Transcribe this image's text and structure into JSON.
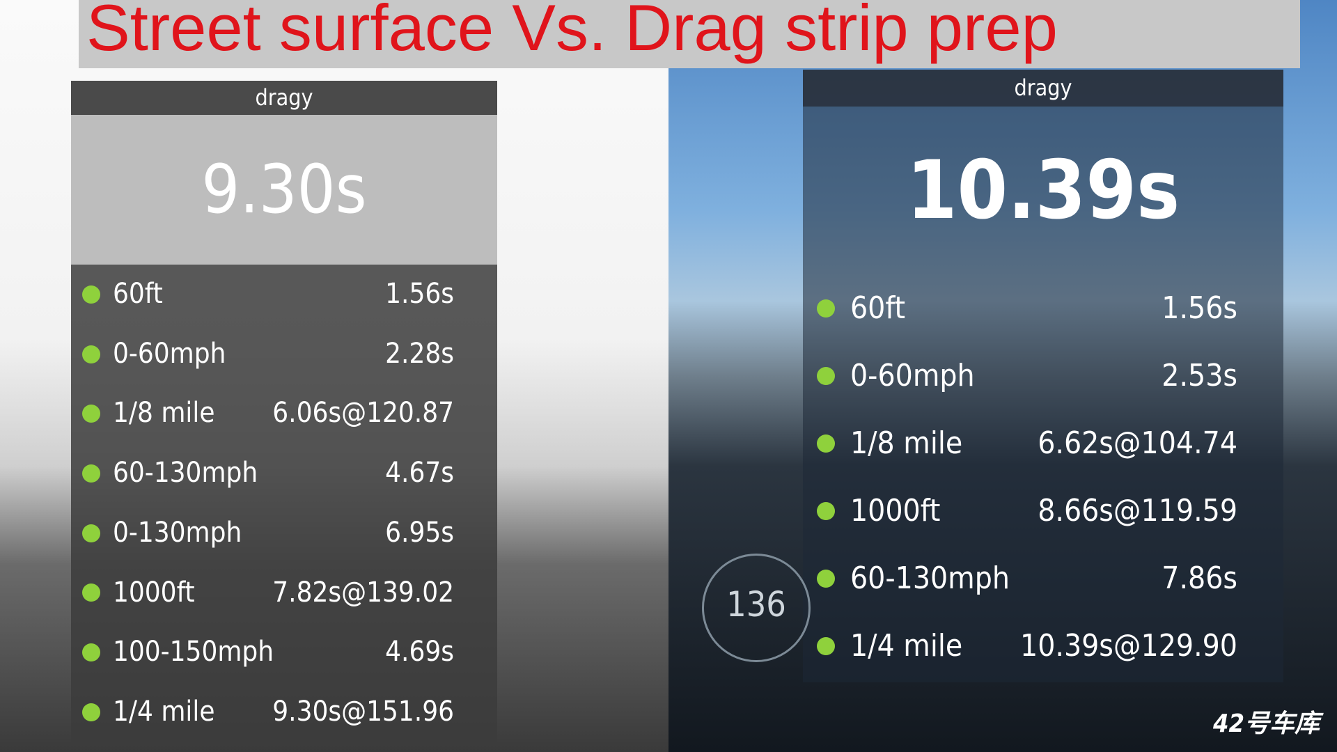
{
  "title": "Street surface  Vs. Drag strip prep",
  "left_panel": {
    "brand": "dragy",
    "time": "9.30s",
    "rows": [
      {
        "label": "60ft",
        "value": "1.56s"
      },
      {
        "label": "0-60mph",
        "value": "2.28s"
      },
      {
        "label": "1/8 mile",
        "value": "6.06s@120.87"
      },
      {
        "label": "60-130mph",
        "value": "4.67s"
      },
      {
        "label": "0-130mph",
        "value": "6.95s"
      },
      {
        "label": "1000ft",
        "value": "7.82s@139.02"
      },
      {
        "label": "100-150mph",
        "value": "4.69s"
      },
      {
        "label": "1/4 mile",
        "value": "9.30s@151.96"
      }
    ]
  },
  "right_panel": {
    "brand": "dragy",
    "time": "10.39s",
    "rows": [
      {
        "label": "60ft",
        "value": "1.56s"
      },
      {
        "label": "0-60mph",
        "value": "2.53s"
      },
      {
        "label": "1/8 mile",
        "value": "6.62s@104.74"
      },
      {
        "label": "1000ft",
        "value": "8.66s@119.59"
      },
      {
        "label": "60-130mph",
        "value": "7.86s"
      },
      {
        "label": "1/4 mile",
        "value": "10.39s@129.90"
      }
    ]
  },
  "speedometer": "136",
  "watermark": "42号车库"
}
